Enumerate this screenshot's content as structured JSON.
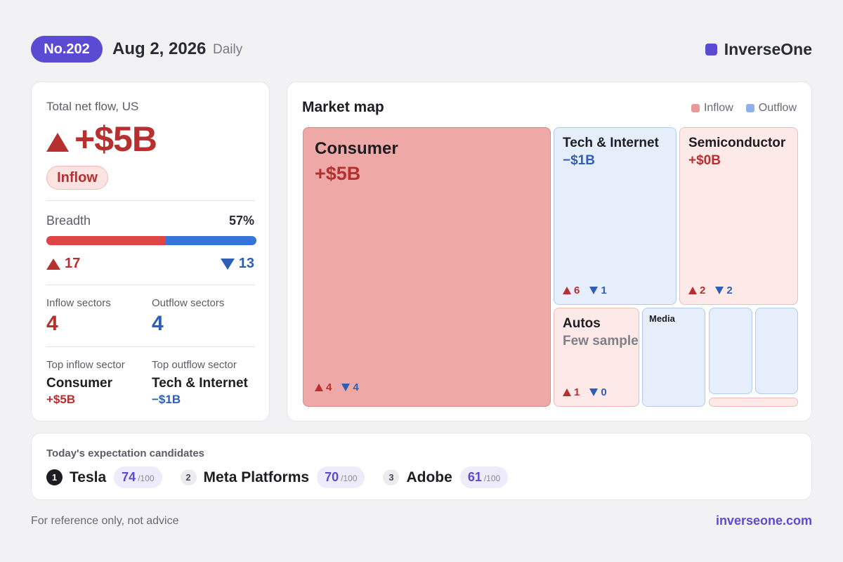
{
  "header": {
    "issue": "No.202",
    "date": "Aug 2, 2026",
    "period": "Daily",
    "brand": "InverseOne"
  },
  "summary": {
    "label": "Total net flow, US",
    "value": "+$5B",
    "direction": "Inflow",
    "breadth_label": "Breadth",
    "breadth_pct": "57%",
    "breadth_fraction": 0.57,
    "advancers": "17",
    "decliners": "13",
    "inflow_sectors_label": "Inflow sectors",
    "inflow_sectors": "4",
    "outflow_sectors_label": "Outflow sectors",
    "outflow_sectors": "4",
    "top_inflow_label": "Top inflow sector",
    "top_inflow_name": "Consumer",
    "top_inflow_value": "+$5B",
    "top_outflow_label": "Top outflow sector",
    "top_outflow_name": "Tech & Internet",
    "top_outflow_value": "−$1B"
  },
  "market_map": {
    "title": "Market map",
    "legend_inflow": "Inflow",
    "legend_outflow": "Outflow",
    "tiles": {
      "consumer": {
        "name": "Consumer",
        "value": "+$5B",
        "up": "4",
        "down": "4"
      },
      "tech": {
        "name": "Tech & Internet",
        "value": "−$1B",
        "up": "6",
        "down": "1"
      },
      "semi": {
        "name": "Semiconductor",
        "value": "+$0B",
        "up": "2",
        "down": "2"
      },
      "autos": {
        "name": "Autos",
        "value": "Few samples",
        "up": "1",
        "down": "0"
      },
      "media": {
        "name": "Media"
      }
    }
  },
  "candidates": {
    "title": "Today's expectation candidates",
    "items": [
      {
        "rank": "1",
        "name": "Tesla",
        "score": "74",
        "max": "/100"
      },
      {
        "rank": "2",
        "name": "Meta Platforms",
        "score": "70",
        "max": "/100"
      },
      {
        "rank": "3",
        "name": "Adobe",
        "score": "61",
        "max": "/100"
      }
    ]
  },
  "footer": {
    "note": "For reference only, not advice",
    "link": "inverseone.com"
  },
  "colors": {
    "accent": "#5b4bd3",
    "inflow": "#b73030",
    "outflow": "#2f5fb5",
    "inflow_legend": "#e99a98",
    "outflow_legend": "#8fb0ea"
  }
}
